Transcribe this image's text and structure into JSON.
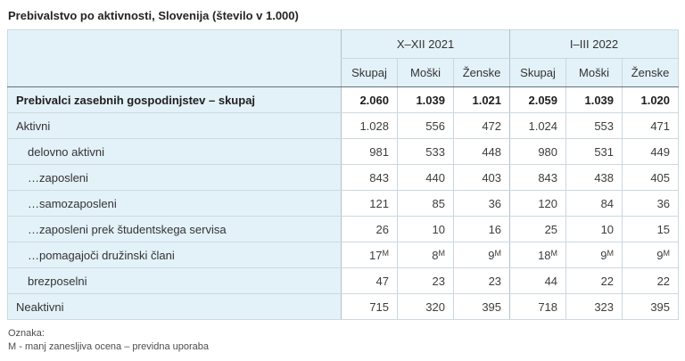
{
  "title": "Prebivalstvo po aktivnosti, Slovenija (število v 1.000)",
  "table": {
    "groups": [
      {
        "label": "X–XII 2021",
        "cols": [
          "Skupaj",
          "Moški",
          "Ženske"
        ]
      },
      {
        "label": "I–III 2022",
        "cols": [
          "Skupaj",
          "Moški",
          "Ženske"
        ]
      }
    ],
    "rows": [
      {
        "label": "Prebivalci zasebnih gospodinjstev – skupaj",
        "bold": true,
        "indent": 0,
        "values": [
          "2.060",
          "1.039",
          "1.021",
          "2.059",
          "1.039",
          "1.020"
        ]
      },
      {
        "label": "Aktivni",
        "bold": false,
        "indent": 0,
        "values": [
          "1.028",
          "556",
          "472",
          "1.024",
          "553",
          "471"
        ]
      },
      {
        "label": "delovno aktivni",
        "bold": false,
        "indent": 1,
        "values": [
          "981",
          "533",
          "448",
          "980",
          "531",
          "449"
        ]
      },
      {
        "label": "…zaposleni",
        "bold": false,
        "indent": 1,
        "values": [
          "843",
          "440",
          "403",
          "843",
          "438",
          "405"
        ]
      },
      {
        "label": "…samozaposleni",
        "bold": false,
        "indent": 1,
        "values": [
          "121",
          "85",
          "36",
          "120",
          "84",
          "36"
        ]
      },
      {
        "label": "…zaposleni prek študentskega servisa",
        "bold": false,
        "indent": 1,
        "values": [
          "26",
          "10",
          "16",
          "25",
          "10",
          "15"
        ]
      },
      {
        "label": "…pomagajoči družinski člani",
        "bold": false,
        "indent": 1,
        "values": [
          {
            "v": "17",
            "flag": "M"
          },
          {
            "v": "8",
            "flag": "M"
          },
          {
            "v": "9",
            "flag": "M"
          },
          {
            "v": "18",
            "flag": "M"
          },
          {
            "v": "9",
            "flag": "M"
          },
          {
            "v": "9",
            "flag": "M"
          }
        ]
      },
      {
        "label": "brezposelni",
        "bold": false,
        "indent": 1,
        "values": [
          "47",
          "23",
          "23",
          "44",
          "22",
          "22"
        ]
      },
      {
        "label": "Neaktivni",
        "bold": false,
        "indent": 0,
        "values": [
          "715",
          "320",
          "395",
          "718",
          "323",
          "395"
        ]
      }
    ]
  },
  "footnote": {
    "label": "Oznaka:",
    "text": "M - manj zanesljiva ocena – previdna uporaba"
  },
  "colors": {
    "header_bg": "#e3f1f9",
    "cell_bg": "#ffffff",
    "border_light": "#ccd9df",
    "border_group": "#b3c1c9",
    "border_header_bottom": "#60727b",
    "text": "#333333"
  }
}
